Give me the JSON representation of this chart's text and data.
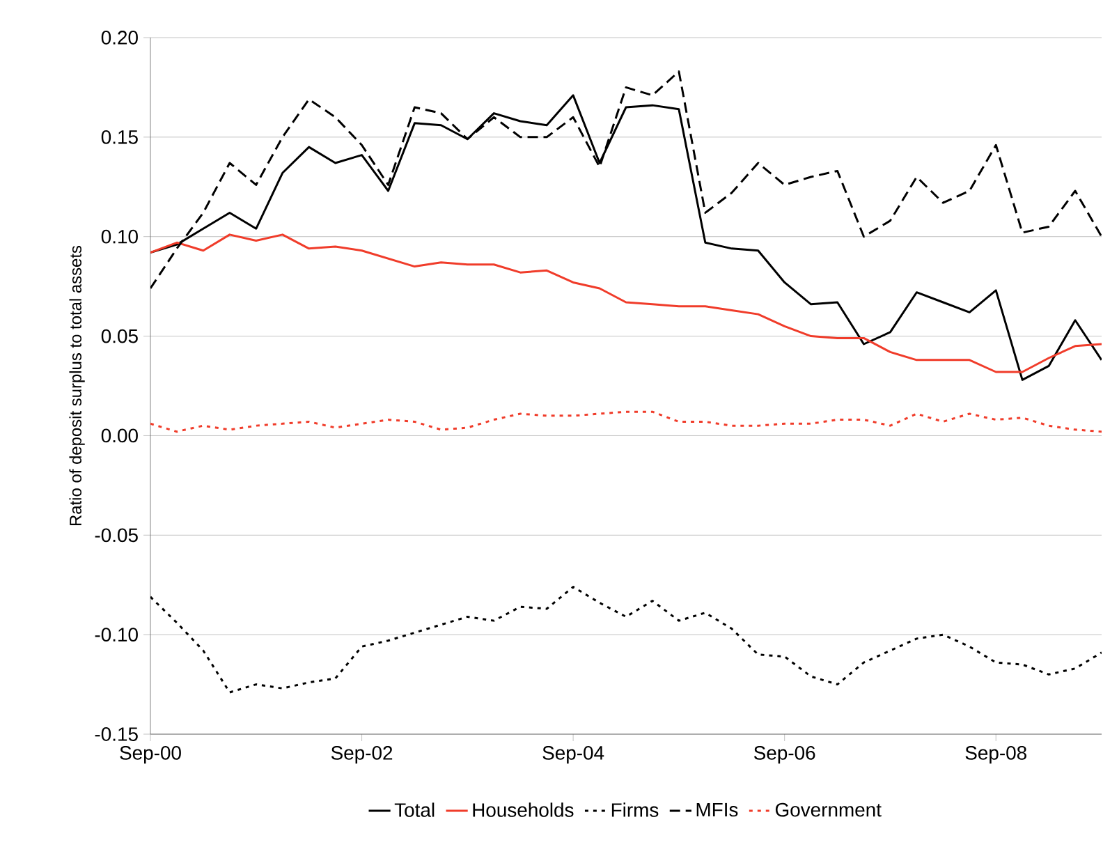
{
  "chart_data": {
    "type": "line",
    "ylabel": "Ratio of deposit surplus to total assets",
    "categories": [
      "Sep-00",
      null,
      null,
      null,
      null,
      null,
      null,
      null,
      "Sep-02",
      null,
      null,
      null,
      null,
      null,
      null,
      null,
      "Sep-04",
      null,
      null,
      null,
      null,
      null,
      null,
      null,
      "Sep-06",
      null,
      null,
      null,
      null,
      null,
      null,
      null,
      "Sep-08",
      null,
      null,
      null,
      null
    ],
    "ylim": [
      -0.15,
      0.2
    ],
    "yticks": [
      {
        "value": -0.15,
        "label": "-0.15"
      },
      {
        "value": -0.1,
        "label": "-0.10"
      },
      {
        "value": -0.05,
        "label": "-0.05"
      },
      {
        "value": 0,
        "label": "0.00"
      },
      {
        "value": 0.05,
        "label": "0.05"
      },
      {
        "value": 0.1,
        "label": "0.10"
      },
      {
        "value": 0.15,
        "label": "0.15"
      },
      {
        "value": 0.2,
        "label": "0.20"
      }
    ],
    "grid": "y",
    "legend": "bottom",
    "marker": "none",
    "series": [
      {
        "name": "Total",
        "color": "#000000",
        "line_style": "solid",
        "values": [
          0.092,
          0.096,
          0.104,
          0.112,
          0.104,
          0.132,
          0.145,
          0.137,
          0.141,
          0.123,
          0.157,
          0.156,
          0.149,
          0.162,
          0.158,
          0.156,
          0.171,
          0.137,
          0.165,
          0.166,
          0.164,
          0.097,
          0.094,
          0.093,
          0.077,
          0.066,
          0.067,
          0.046,
          0.052,
          0.072,
          0.067,
          0.062,
          0.073,
          0.028,
          0.035,
          0.058,
          0.038
        ]
      },
      {
        "name": "Households",
        "color": "#f03c2a",
        "line_style": "solid",
        "values": [
          0.092,
          0.097,
          0.093,
          0.101,
          0.098,
          0.101,
          0.094,
          0.095,
          0.093,
          0.089,
          0.085,
          0.087,
          0.086,
          0.086,
          0.082,
          0.083,
          0.077,
          0.074,
          0.067,
          0.066,
          0.065,
          0.065,
          0.063,
          0.061,
          0.055,
          0.05,
          0.049,
          0.049,
          0.042,
          0.038,
          0.038,
          0.038,
          0.032,
          0.032,
          0.039,
          0.045,
          0.046
        ]
      },
      {
        "name": "Firms",
        "color": "#000000",
        "line_style": "dotted",
        "values": [
          -0.081,
          -0.094,
          -0.108,
          -0.129,
          -0.125,
          -0.127,
          -0.124,
          -0.122,
          -0.106,
          -0.103,
          -0.099,
          -0.095,
          -0.091,
          -0.093,
          -0.086,
          -0.087,
          -0.076,
          -0.084,
          -0.091,
          -0.083,
          -0.093,
          -0.089,
          -0.097,
          -0.11,
          -0.111,
          -0.121,
          -0.125,
          -0.114,
          -0.108,
          -0.102,
          -0.1,
          -0.106,
          -0.114,
          -0.115,
          -0.12,
          -0.117,
          -0.109
        ]
      },
      {
        "name": "MFIs",
        "color": "#000000",
        "line_style": "dashed",
        "values": [
          0.074,
          0.094,
          0.112,
          0.137,
          0.126,
          0.15,
          0.169,
          0.16,
          0.146,
          0.126,
          0.165,
          0.162,
          0.149,
          0.16,
          0.15,
          0.15,
          0.16,
          0.135,
          0.175,
          0.171,
          0.183,
          0.112,
          0.122,
          0.137,
          0.126,
          0.13,
          0.133,
          0.1,
          0.108,
          0.13,
          0.117,
          0.123,
          0.146,
          0.102,
          0.105,
          0.123,
          0.1
        ]
      },
      {
        "name": "Government",
        "color": "#f03c2a",
        "line_style": "dotted",
        "values": [
          0.006,
          0.002,
          0.005,
          0.003,
          0.005,
          0.006,
          0.007,
          0.004,
          0.006,
          0.008,
          0.007,
          0.003,
          0.004,
          0.008,
          0.011,
          0.01,
          0.01,
          0.011,
          0.012,
          0.012,
          0.007,
          0.007,
          0.005,
          0.005,
          0.006,
          0.006,
          0.008,
          0.008,
          0.005,
          0.011,
          0.007,
          0.011,
          0.008,
          0.009,
          0.005,
          0.003,
          0.002
        ]
      }
    ]
  }
}
